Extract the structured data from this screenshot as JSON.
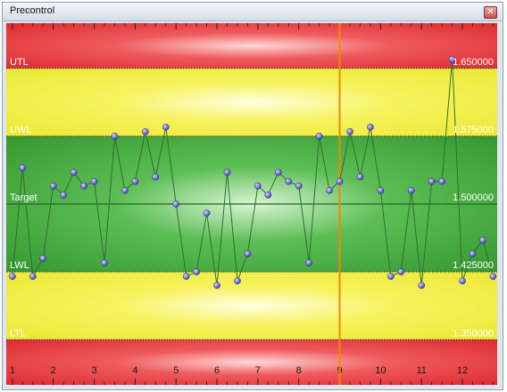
{
  "window": {
    "title": "Precontrol",
    "close_icon": "close-icon"
  },
  "chart_data": {
    "type": "line",
    "zones": [
      {
        "name": "red-upper",
        "from": 1.65,
        "to": 1.7,
        "color": "#e8373b"
      },
      {
        "name": "yellow-upper",
        "from": 1.575,
        "to": 1.65,
        "color": "#f1f046"
      },
      {
        "name": "green",
        "from": 1.425,
        "to": 1.575,
        "color": "#3fa63a"
      },
      {
        "name": "yellow-lower",
        "from": 1.35,
        "to": 1.425,
        "color": "#f1f046"
      },
      {
        "name": "red-lower",
        "from": 1.3,
        "to": 1.35,
        "color": "#e8373b"
      }
    ],
    "limits": [
      {
        "label": "UTL",
        "value": 1.65,
        "value_label": "1.650000"
      },
      {
        "label": "UWL",
        "value": 1.575,
        "value_label": "1.575000"
      },
      {
        "label": "Target",
        "value": 1.5,
        "value_label": "1.500000"
      },
      {
        "label": "LWL",
        "value": 1.425,
        "value_label": "1.425000"
      },
      {
        "label": "LTL",
        "value": 1.35,
        "value_label": "1.350000"
      }
    ],
    "ylim": [
      1.3,
      1.7
    ],
    "xlim": [
      0.85,
      12.85
    ],
    "x_ticks": [
      "1",
      "2",
      "3",
      "4",
      "5",
      "6",
      "7",
      "8",
      "9",
      "10",
      "11",
      "12"
    ],
    "marker_line_x": 9,
    "marker_color": "#f08a00",
    "line_color": "#2f6f2f",
    "point_color": "#5a5ad0",
    "series": [
      {
        "x": [
          1,
          1.25,
          1.5,
          1.75,
          2,
          2.25,
          2.5,
          2.75,
          3,
          3.25,
          3.5,
          3.75,
          4,
          4.25,
          4.5,
          4.75,
          5,
          5.25,
          5.5,
          5.75,
          6,
          6.25,
          6.5,
          6.75,
          7,
          7.25,
          7.5,
          7.75,
          8,
          8.25,
          8.5,
          8.75,
          9,
          9.25,
          9.5,
          9.75,
          10,
          10.25,
          10.5,
          10.75,
          11,
          11.25,
          11.5,
          11.75,
          12,
          12.25,
          12.5,
          12.75
        ],
        "y": [
          1.42,
          1.54,
          1.42,
          1.44,
          1.52,
          1.51,
          1.535,
          1.52,
          1.525,
          1.435,
          1.575,
          1.515,
          1.525,
          1.58,
          1.53,
          1.585,
          1.5,
          1.42,
          1.425,
          1.49,
          1.41,
          1.535,
          1.415,
          1.445,
          1.52,
          1.51,
          1.535,
          1.525,
          1.52,
          1.435,
          1.575,
          1.515,
          1.525,
          1.58,
          1.53,
          1.585,
          1.515,
          1.42,
          1.425,
          1.515,
          1.41,
          1.525,
          1.525,
          1.66,
          1.415,
          1.445,
          1.46,
          1.42
        ]
      }
    ]
  }
}
